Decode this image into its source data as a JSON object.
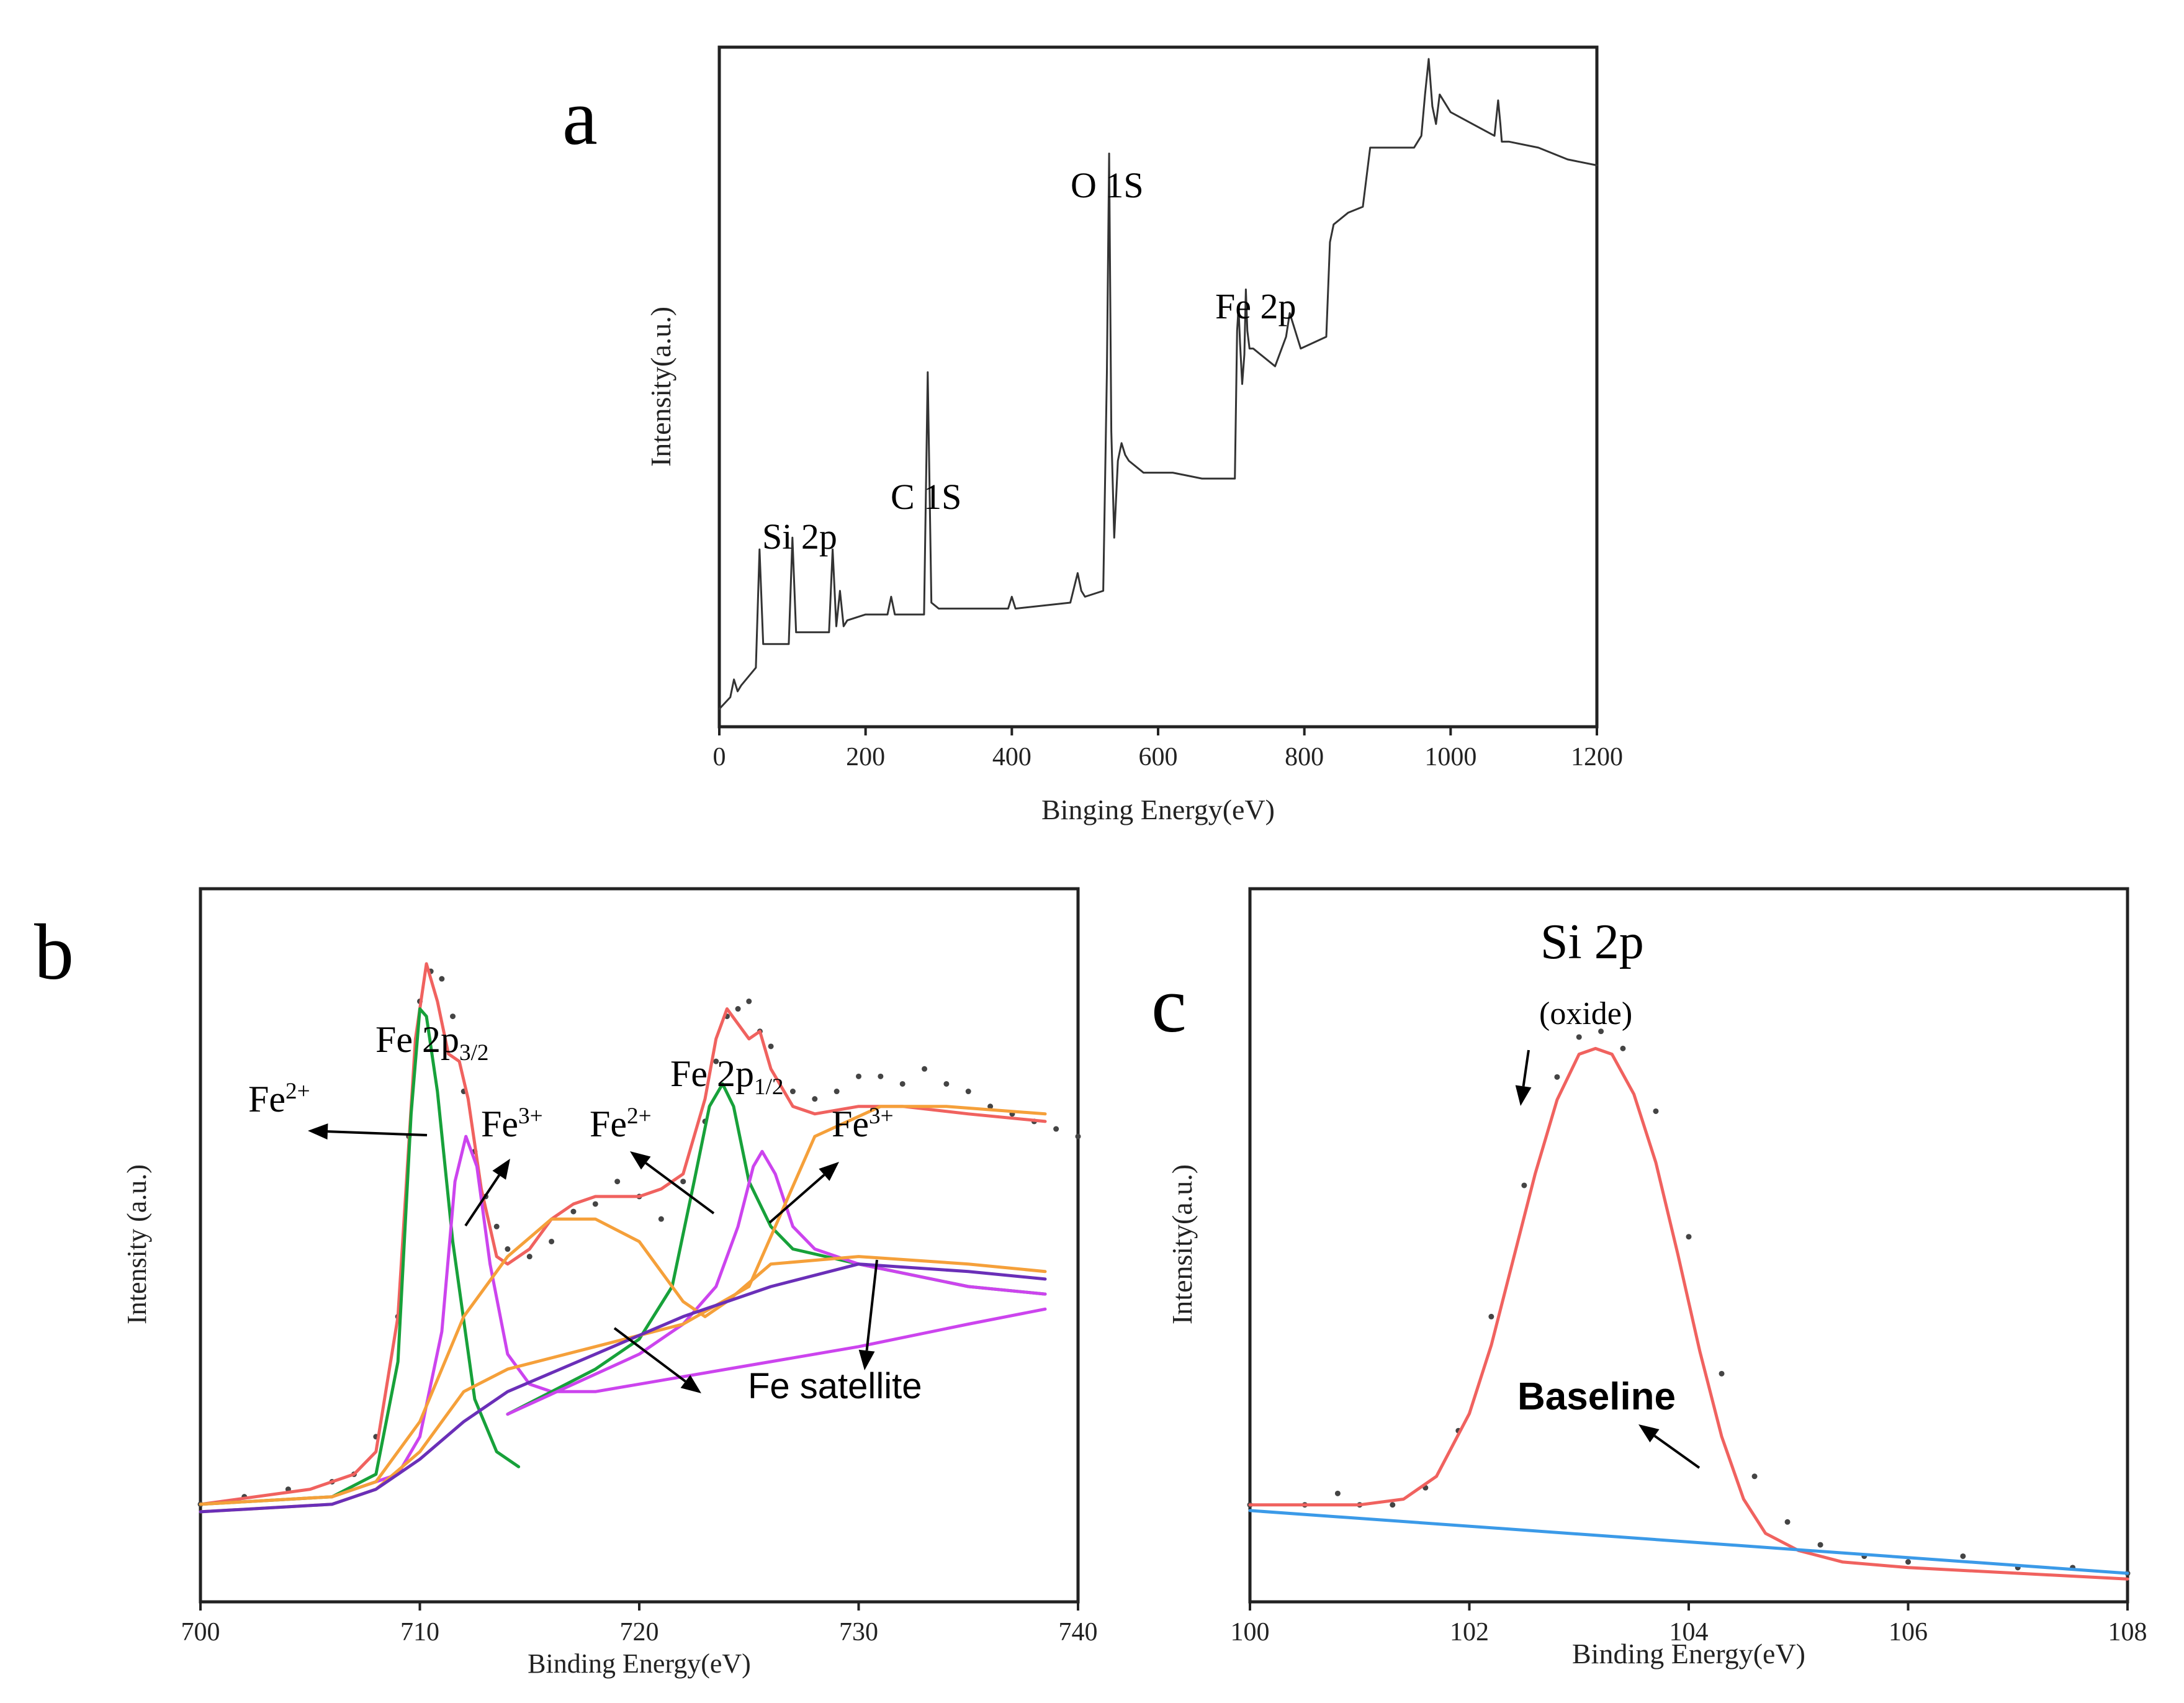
{
  "chart_data": [
    {
      "panel_label": "a",
      "type": "line",
      "title": "",
      "xlabel": "Binging Energy(eV)",
      "ylabel": "Intensity(a.u.)",
      "xlim": [
        0,
        1200
      ],
      "x_ticks": [
        "0",
        "200",
        "400",
        "600",
        "800",
        "1000",
        "1200"
      ],
      "y_ticks": [],
      "annotations": [
        {
          "text": "Si 2p",
          "x": 150
        },
        {
          "text": "C 1S",
          "x": 285
        },
        {
          "text": "O 1S",
          "x": 545
        },
        {
          "text": "Fe 2p",
          "x": 750
        }
      ],
      "series": [
        {
          "name": "Survey spectrum",
          "color": "#333333",
          "x": [
            0,
            15,
            20,
            25,
            30,
            50,
            55,
            60,
            95,
            100,
            105,
            150,
            155,
            160,
            165,
            170,
            175,
            200,
            230,
            235,
            240,
            280,
            285,
            290,
            300,
            395,
            400,
            405,
            480,
            490,
            495,
            500,
            525,
            530,
            533,
            536,
            540,
            545,
            550,
            555,
            560,
            580,
            620,
            660,
            700,
            705,
            708,
            710,
            712,
            715,
            718,
            720,
            722,
            725,
            730,
            760,
            775,
            780,
            785,
            790,
            795,
            830,
            835,
            840,
            860,
            880,
            885,
            890,
            930,
            950,
            960,
            965,
            970,
            975,
            980,
            985,
            990,
            1000,
            1030,
            1060,
            1065,
            1068,
            1070,
            1080,
            1120,
            1160,
            1200
          ],
          "y": [
            3,
            5,
            8,
            6,
            7,
            10,
            30,
            14,
            14,
            32,
            16,
            16,
            30,
            17,
            23,
            17,
            18,
            19,
            19,
            22,
            19,
            19,
            60,
            21,
            20,
            20,
            22,
            20,
            21,
            26,
            23,
            22,
            23,
            60,
            97,
            50,
            32,
            45,
            48,
            46,
            45,
            43,
            43,
            42,
            42,
            42,
            67,
            71,
            65,
            58,
            63,
            74,
            67,
            64,
            64,
            61,
            66,
            70,
            68,
            66,
            64,
            66,
            82,
            85,
            87,
            88,
            93,
            98,
            98,
            98,
            100,
            107,
            113,
            105,
            102,
            107,
            106,
            104,
            102,
            100,
            106,
            102,
            99,
            99,
            98,
            96,
            95
          ]
        }
      ]
    },
    {
      "panel_label": "b",
      "type": "line",
      "title": "",
      "xlabel": "Binding Energy(eV)",
      "ylabel": "Intensity (a.u.)",
      "xlim": [
        700,
        740
      ],
      "x_ticks": [
        "700",
        "710",
        "720",
        "730",
        "740"
      ],
      "y_ticks": [],
      "annotations": [
        {
          "base": "Fe 2p",
          "sub": "3/2",
          "x": 711.5
        },
        {
          "base": "Fe 2p",
          "sub": "1/2",
          "x": 725
        },
        {
          "base": "Fe",
          "sup": "2+",
          "peak": "left"
        },
        {
          "base": "Fe",
          "sup": "3+",
          "peak": "left"
        },
        {
          "base": "Fe",
          "sup": "2+",
          "peak": "right"
        },
        {
          "base": "Fe",
          "sup": "3+",
          "peak": "right"
        },
        {
          "text": "Fe satellite"
        }
      ],
      "series": [
        {
          "name": "Raw data",
          "style": "dots",
          "color": "#444444",
          "x": [
            700,
            702,
            704,
            706,
            707,
            708,
            709,
            709.5,
            710,
            710.5,
            711,
            711.5,
            712,
            712.5,
            713,
            713.5,
            714,
            715,
            716,
            717,
            718,
            719,
            720,
            721,
            722,
            723,
            723.5,
            724,
            724.5,
            725,
            725.5,
            726,
            727,
            728,
            729,
            730,
            731,
            732,
            733,
            734,
            735,
            736,
            737,
            738,
            739,
            740
          ],
          "y": [
            13,
            14,
            15,
            16,
            17,
            22,
            38,
            62,
            80,
            84,
            83,
            78,
            68,
            60,
            54,
            50,
            47,
            46,
            48,
            52,
            53,
            56,
            54,
            51,
            56,
            64,
            72,
            78,
            79,
            80,
            76,
            74,
            68,
            67,
            68,
            70,
            70,
            69,
            71,
            69,
            68,
            66,
            65,
            64,
            63,
            62
          ]
        },
        {
          "name": "Envelope fit",
          "color": "#f0625f",
          "x": [
            700,
            705,
            707,
            708,
            709,
            709.8,
            710.3,
            710.8,
            711.3,
            711.8,
            712.2,
            712.8,
            713.5,
            714,
            715,
            716,
            717,
            718,
            719,
            720,
            721,
            722,
            723,
            723.5,
            724,
            724.5,
            725,
            725.5,
            726,
            727,
            728,
            730,
            732,
            735,
            738.5
          ],
          "y": [
            13,
            15,
            17,
            20,
            38,
            75,
            85,
            80,
            73,
            72,
            67,
            55,
            46,
            45,
            47,
            51,
            53,
            54,
            54,
            54,
            55,
            57,
            67,
            75,
            79,
            77,
            75,
            76,
            71,
            66,
            65,
            66,
            66,
            65,
            64
          ]
        },
        {
          "name": "Fe2+ (2p3/2)",
          "color": "#17a13a",
          "x": [
            700,
            706,
            708,
            709,
            709.6,
            710,
            710.3,
            710.8,
            711.5,
            712.5,
            713.5,
            714.5
          ],
          "y": [
            13,
            14,
            17,
            32,
            65,
            79,
            78,
            68,
            48,
            27,
            20,
            18
          ]
        },
        {
          "name": "Fe3+ (2p3/2)",
          "color": "#cc44ee",
          "x": [
            706,
            709,
            710,
            711,
            711.6,
            712.1,
            712.6,
            713.2,
            714,
            715,
            716,
            718,
            722,
            726,
            730,
            735,
            738.5
          ],
          "y": [
            14,
            17,
            22,
            36,
            56,
            62,
            58,
            45,
            33,
            29,
            28,
            28,
            30,
            32,
            34,
            37,
            39
          ]
        },
        {
          "name": "Fe2+ (2p1/2)",
          "color": "#17a13a",
          "x": [
            714,
            718,
            720,
            721.5,
            722.5,
            723.2,
            723.8,
            724.3,
            725,
            726,
            727,
            730,
            735,
            738.5
          ],
          "y": [
            25,
            31,
            35,
            42,
            56,
            66,
            69,
            66,
            56,
            50,
            47,
            45,
            42,
            41
          ]
        },
        {
          "name": "Fe3+ (2p1/2)",
          "color": "#cc44ee",
          "x": [
            714,
            720,
            722,
            723.5,
            724.5,
            725.2,
            725.6,
            726.2,
            727,
            728,
            730,
            735,
            738.5
          ],
          "y": [
            25,
            33,
            37,
            42,
            50,
            58,
            60,
            57,
            50,
            47,
            45,
            42,
            41
          ]
        },
        {
          "name": "Satellite 1",
          "color": "#f5a03a",
          "x": [
            700,
            706,
            708,
            710,
            712,
            714,
            716,
            718,
            720,
            722,
            723,
            724,
            726,
            730,
            735,
            738.5
          ],
          "y": [
            13,
            14,
            16,
            24,
            38,
            46,
            51,
            51,
            48,
            40,
            38,
            40,
            45,
            46,
            45,
            44
          ]
        },
        {
          "name": "Satellite 2",
          "color": "#f5a03a",
          "x": [
            700,
            706,
            708,
            710,
            712,
            714,
            718,
            722,
            725,
            728,
            731,
            734,
            738.5
          ],
          "y": [
            12,
            13,
            15,
            20,
            28,
            31,
            34,
            37,
            42,
            62,
            66,
            66,
            65
          ]
        },
        {
          "name": "Background",
          "color": "#6a2fb8",
          "x": [
            700,
            706,
            708,
            709,
            710,
            712,
            714,
            718,
            722,
            726,
            730,
            735,
            738.5
          ],
          "y": [
            12,
            13,
            15,
            17,
            19,
            24,
            28,
            33,
            38,
            42,
            45,
            44,
            43
          ]
        }
      ]
    },
    {
      "panel_label": "c",
      "type": "line",
      "title": "Si 2p",
      "xlabel": "Binding Energy(eV)",
      "ylabel": "Intensity(a.u.)",
      "xlim": [
        100,
        108
      ],
      "x_ticks": [
        "100",
        "102",
        "104",
        "106",
        "108"
      ],
      "y_ticks": [],
      "annotations": [
        {
          "text": "(oxide)",
          "x": 103.1
        },
        {
          "text": "Baseline",
          "x": 104
        }
      ],
      "series": [
        {
          "name": "Raw data",
          "style": "dots",
          "color": "#444444",
          "x": [
            100,
            100.5,
            100.8,
            101,
            101.3,
            101.6,
            101.9,
            102.2,
            102.5,
            102.8,
            103,
            103.2,
            103.4,
            103.7,
            104,
            104.3,
            104.6,
            104.9,
            105.2,
            105.6,
            106,
            106.5,
            107,
            107.5,
            108
          ],
          "y": [
            17,
            17,
            19,
            17,
            17,
            20,
            30,
            50,
            73,
            92,
            99,
            100,
            97,
            86,
            64,
            40,
            22,
            14,
            10,
            8,
            7,
            8,
            6,
            6,
            5
          ]
        },
        {
          "name": "Fit envelope",
          "color": "#f0625f",
          "x": [
            100,
            100.5,
            101,
            101.4,
            101.7,
            102,
            102.2,
            102.4,
            102.6,
            102.8,
            103,
            103.15,
            103.3,
            103.5,
            103.7,
            103.9,
            104.1,
            104.3,
            104.5,
            104.7,
            105,
            105.4,
            106,
            107,
            108
          ],
          "y": [
            17,
            17,
            17,
            18,
            22,
            33,
            45,
            60,
            75,
            88,
            96,
            97,
            96,
            89,
            77,
            61,
            44,
            29,
            18,
            12,
            9,
            7,
            6,
            5,
            4
          ]
        },
        {
          "name": "Baseline",
          "color": "#3b9ae8",
          "x": [
            100,
            108
          ],
          "y": [
            16,
            5
          ]
        }
      ]
    }
  ]
}
